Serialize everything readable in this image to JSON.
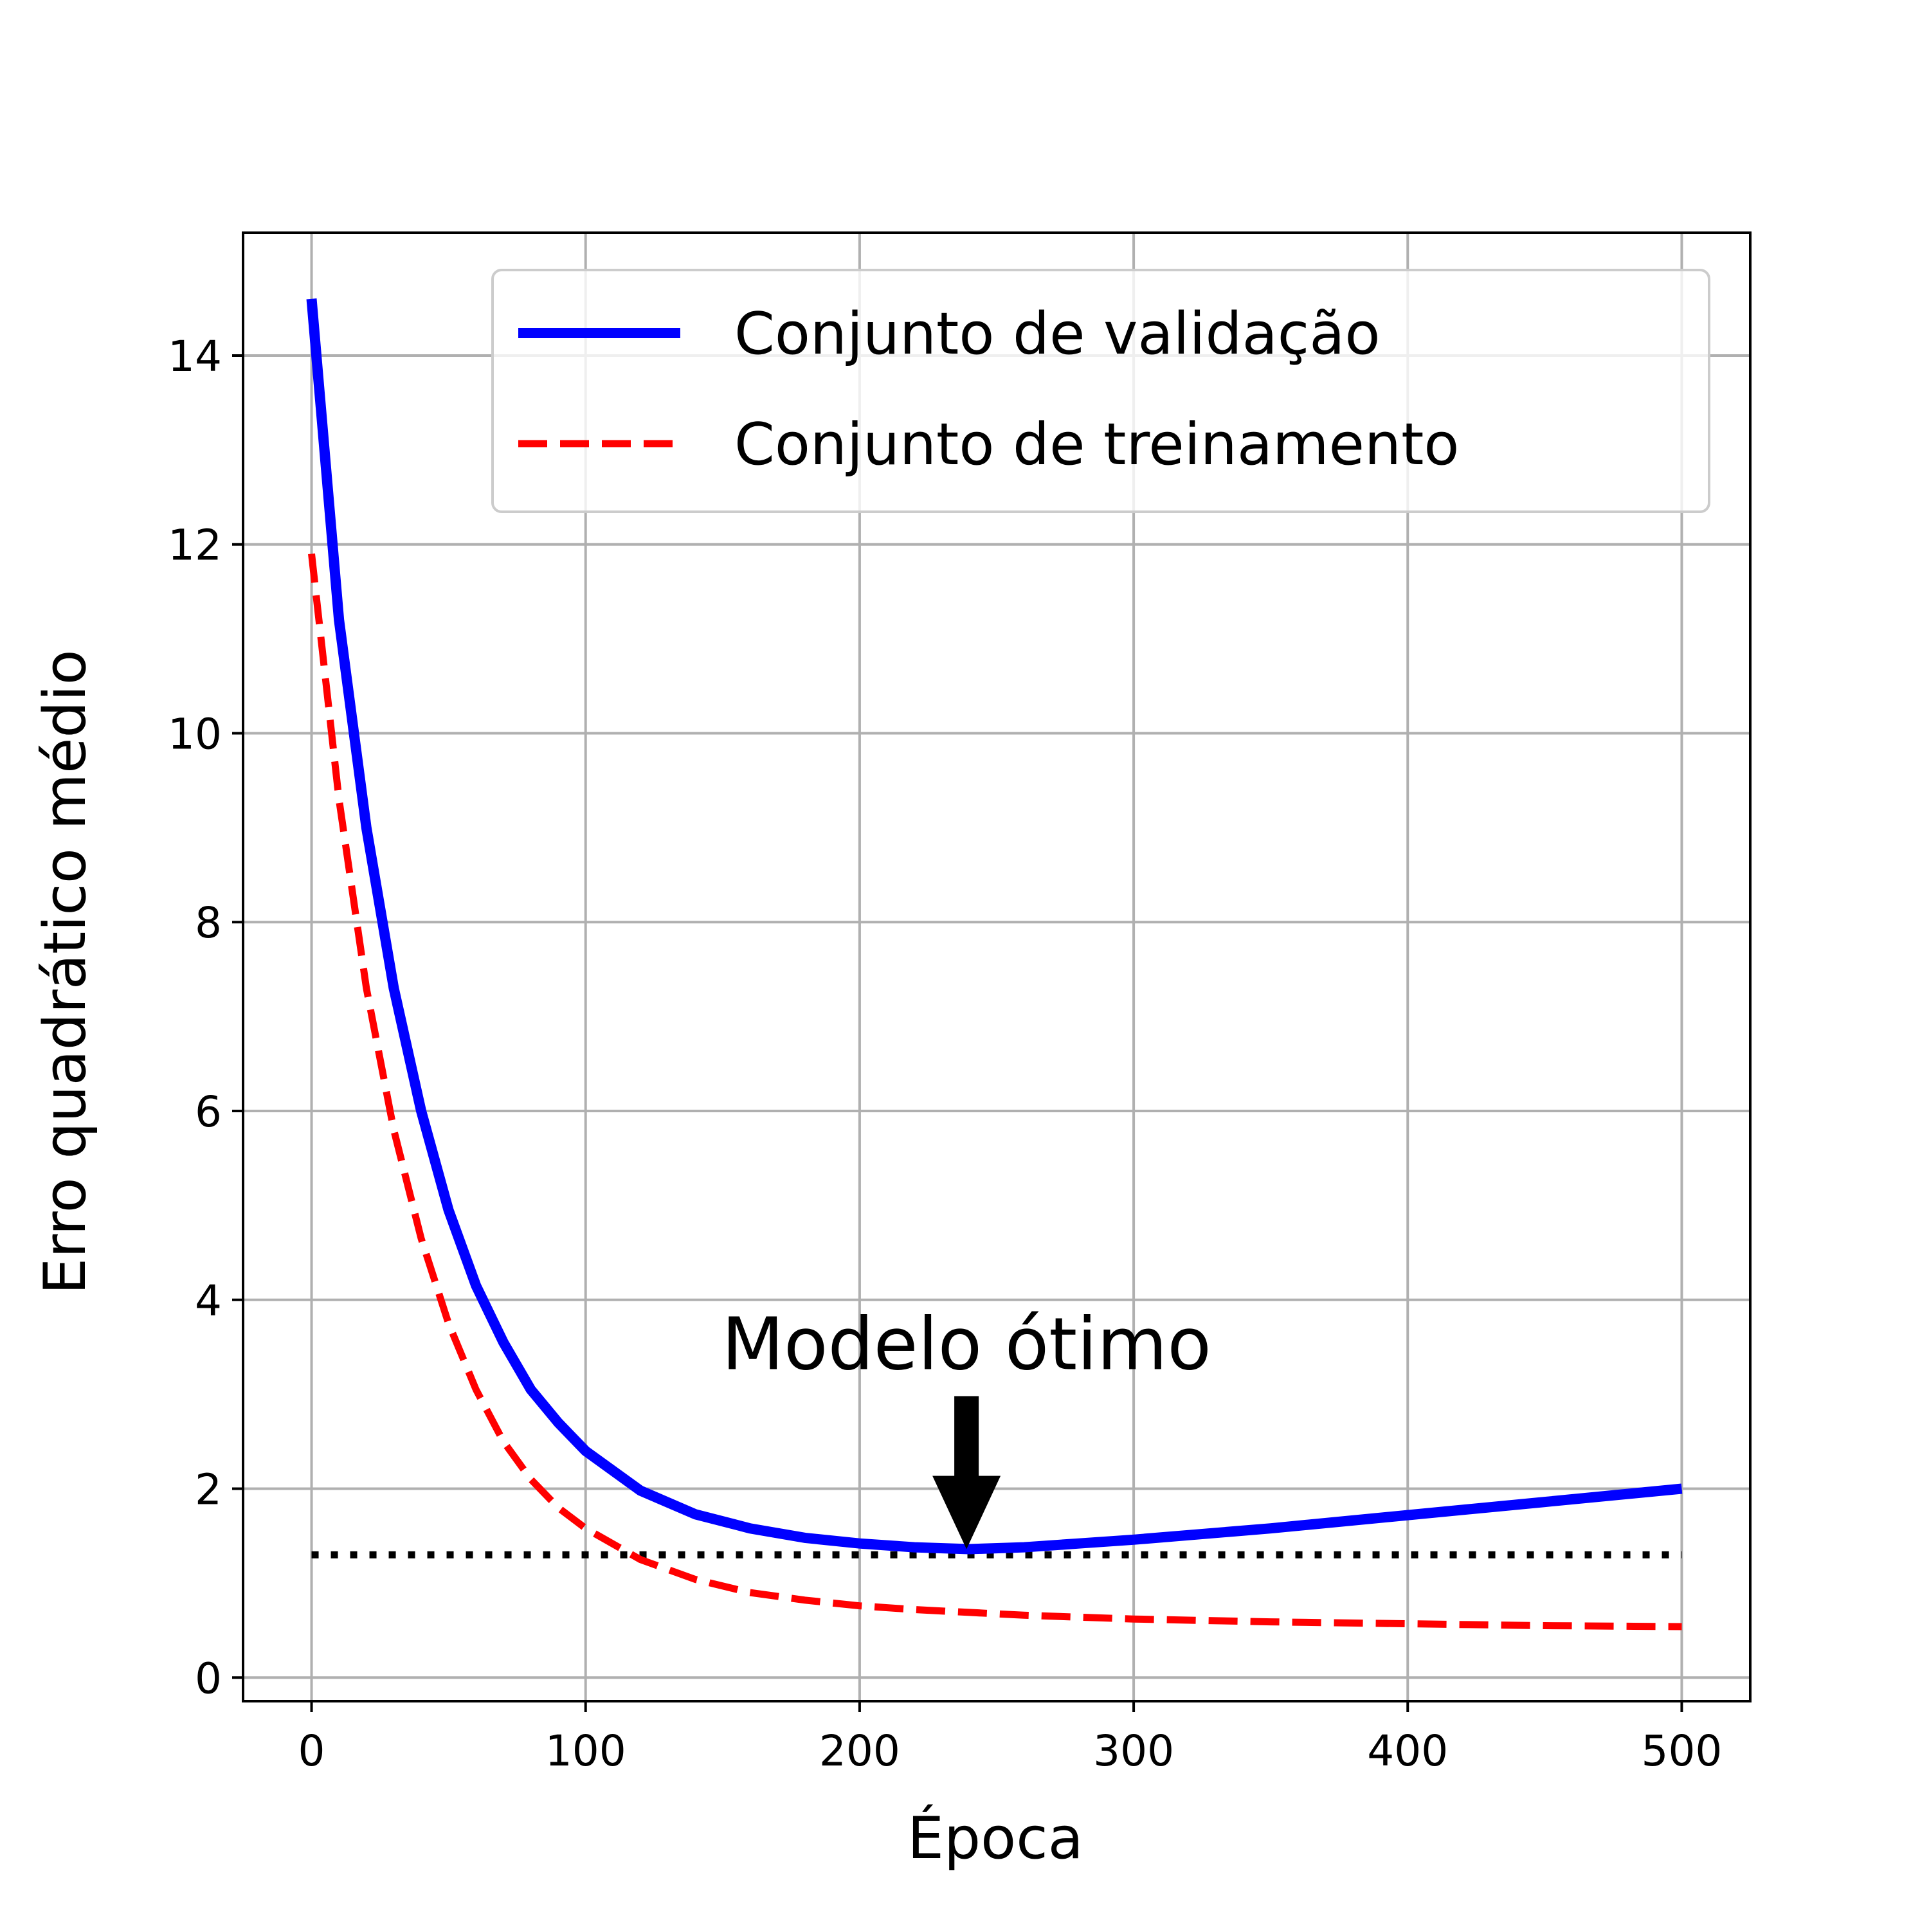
{
  "chart_data": {
    "type": "line",
    "title": "",
    "xlabel": "Época",
    "ylabel": "Erro quadrático médio",
    "xlim": [
      -25,
      525
    ],
    "ylim": [
      -0.25,
      15.3
    ],
    "xticks": [
      0,
      100,
      200,
      300,
      400,
      500
    ],
    "yticks": [
      0,
      2,
      4,
      6,
      8,
      10,
      12,
      14
    ],
    "grid": true,
    "legend_position": "top-right",
    "series": [
      {
        "name": "Conjunto de validação",
        "color": "#0000ff",
        "style": "solid",
        "x": [
          0,
          10,
          20,
          30,
          40,
          50,
          60,
          70,
          80,
          90,
          100,
          120,
          140,
          160,
          180,
          200,
          220,
          240,
          260,
          280,
          300,
          350,
          400,
          450,
          500
        ],
        "y": [
          14.6,
          11.2,
          9.0,
          7.3,
          6.0,
          4.95,
          4.15,
          3.55,
          3.05,
          2.7,
          2.4,
          1.98,
          1.73,
          1.58,
          1.48,
          1.42,
          1.38,
          1.36,
          1.38,
          1.42,
          1.46,
          1.58,
          1.72,
          1.86,
          2.0
        ]
      },
      {
        "name": "Conjunto de treinamento",
        "color": "#ff0000",
        "style": "dashed",
        "x": [
          0,
          10,
          20,
          30,
          40,
          50,
          60,
          70,
          80,
          90,
          100,
          120,
          140,
          160,
          180,
          200,
          220,
          240,
          260,
          280,
          300,
          350,
          400,
          450,
          500
        ],
        "y": [
          11.9,
          9.3,
          7.3,
          5.8,
          4.65,
          3.75,
          3.05,
          2.5,
          2.1,
          1.8,
          1.58,
          1.25,
          1.04,
          0.9,
          0.82,
          0.76,
          0.72,
          0.69,
          0.66,
          0.64,
          0.62,
          0.59,
          0.57,
          0.55,
          0.54
        ]
      }
    ],
    "reference_line": {
      "y": 1.3,
      "x_range": [
        0,
        500
      ],
      "color": "#000000",
      "style": "dotted"
    },
    "annotation": {
      "text": "Modelo ótimo",
      "arrow_tip": [
        239,
        1.36
      ],
      "color": "#000000"
    }
  }
}
